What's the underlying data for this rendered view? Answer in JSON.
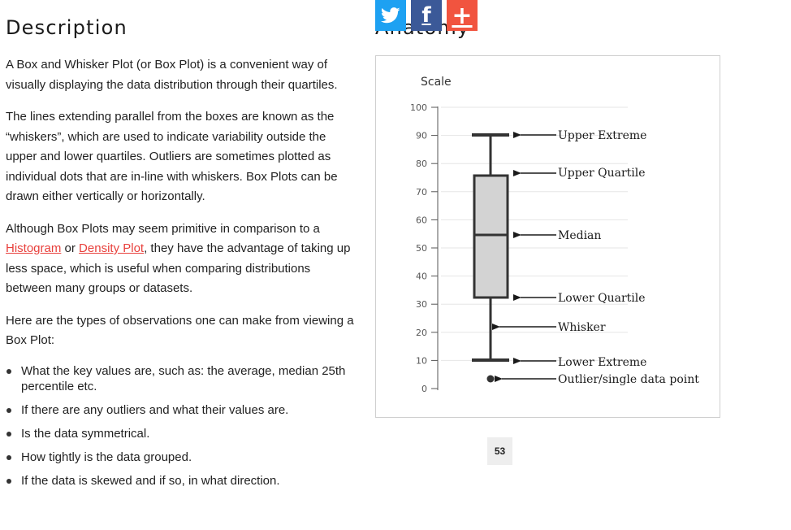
{
  "description": {
    "heading": "Description",
    "p1": "A Box and Whisker Plot (or Box Plot) is a convenient way of visually displaying the data distribution through their quartiles.",
    "p2": "The lines extending parallel from the boxes are known as the “whiskers”, which are used to indicate variability outside the upper and lower quartiles. Outliers are sometimes plotted as individual dots that are in-line with whiskers. Box Plots can be drawn either vertically or horizontally.",
    "p3": {
      "before": "Although Box Plots may seem primitive in comparison to a ",
      "link1": "Histogram",
      "middle": " or ",
      "link2": "Density Plot",
      "after": ", they have the advantage of taking up less space, which is useful when comparing distributions between many groups or datasets."
    },
    "p4": "Here are the types of observations one can make from viewing a Box Plot:",
    "bullets": [
      "What the key values are, such as: the average, median 25th percentile etc.",
      "If there are any outliers and what their values are.",
      "Is the data symmetrical.",
      "How tightly is the data grouped.",
      "If the data is skewed and if so, in what direction."
    ]
  },
  "anatomy": {
    "heading": "Anatomy",
    "scale_label": "Scale",
    "ticks": [
      0,
      10,
      20,
      30,
      40,
      50,
      60,
      70,
      80,
      90,
      100
    ],
    "colors": {
      "box_fill": "#d3d3d3",
      "stroke": "#333333",
      "grid": "#e6e6e6"
    },
    "labels": {
      "upper_extreme": "Upper Extreme",
      "upper_quartile": "Upper Quartile",
      "median": "Median",
      "lower_quartile": "Lower Quartile",
      "whisker": "Whisker",
      "lower_extreme": "Lower Extreme",
      "outlier": "Outlier/single data point"
    }
  },
  "share": {
    "icons": [
      "twitter-icon",
      "facebook-icon",
      "plus-icon"
    ],
    "facebook_glyph": "f",
    "plus_glyph": "+",
    "count": "53"
  }
}
